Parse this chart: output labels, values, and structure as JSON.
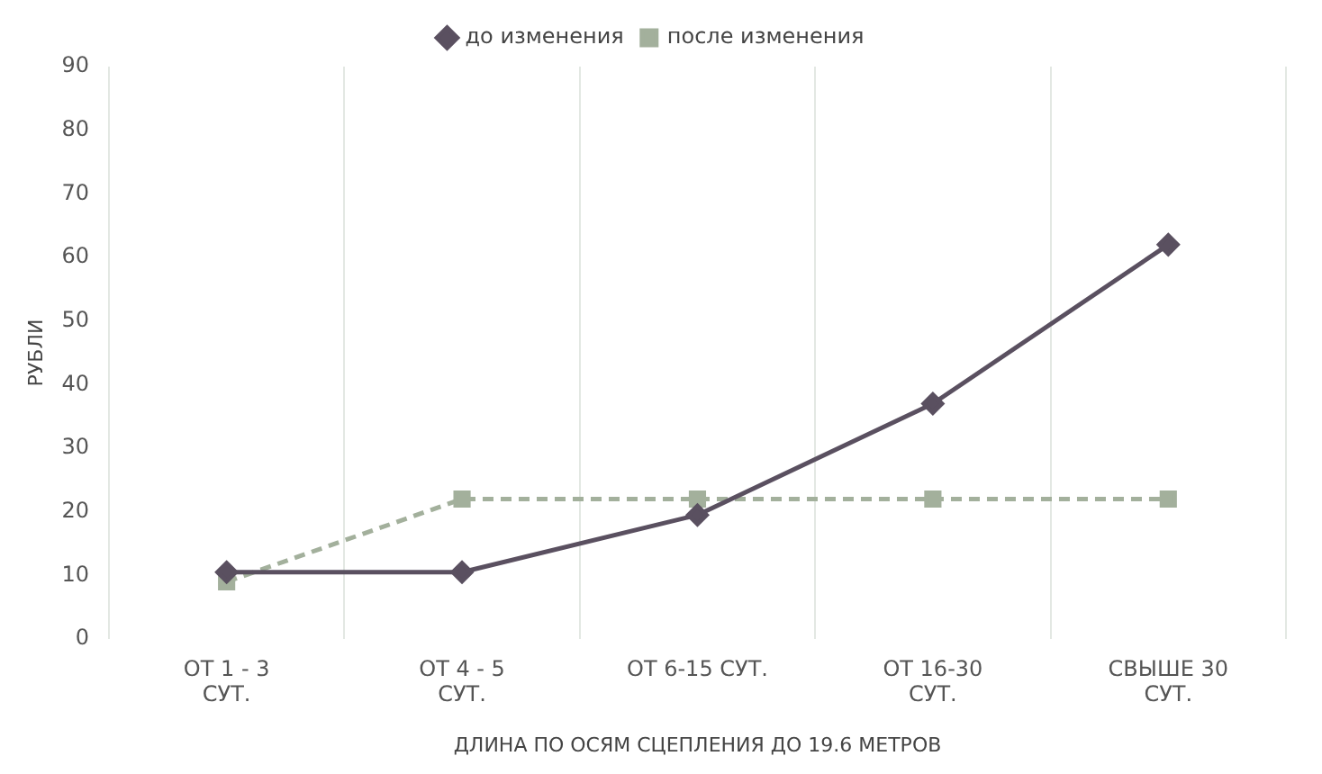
{
  "chart_data": {
    "type": "line",
    "xlabel": "ДЛИНА ПО ОСЯМ СЦЕПЛЕНИЯ ДО 19.6 МЕТРОВ",
    "ylabel": "РУБЛИ",
    "categories": [
      "ОТ 1 - 3 СУТ.",
      "ОТ 4 - 5 СУТ.",
      "ОТ 6-15 СУТ.",
      "ОТ 16-30 СУТ.",
      "СВЫШЕ 30 СУТ."
    ],
    "series": [
      {
        "name": "до изменения",
        "color": "#5a5060",
        "values": [
          10.5,
          10.5,
          19.5,
          37,
          62
        ],
        "marker": "diamond",
        "line_style": "solid"
      },
      {
        "name": "после изменения",
        "color": "#a3b09c",
        "values": [
          9,
          22,
          22,
          22,
          22
        ],
        "marker": "square",
        "line_style": "dashed"
      }
    ],
    "ylim": [
      0,
      90
    ],
    "yticks": [
      0,
      10,
      20,
      30,
      40,
      50,
      60,
      70,
      80,
      90
    ],
    "grid": "x",
    "legend": "top"
  }
}
